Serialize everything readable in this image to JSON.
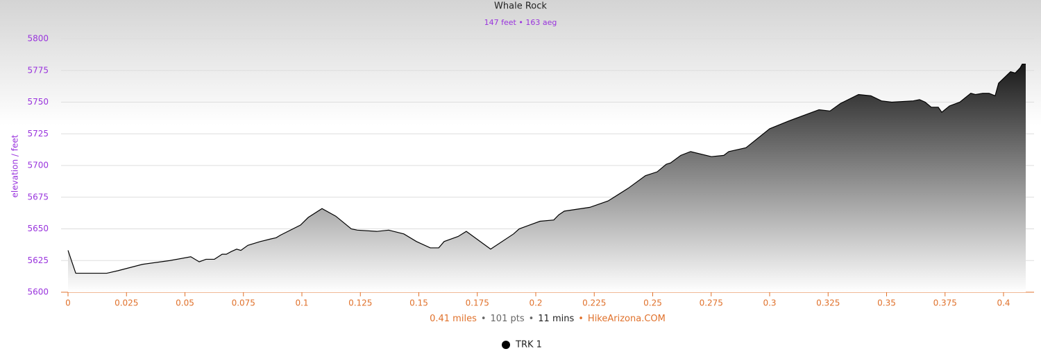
{
  "chart_data": {
    "type": "area",
    "title": "Whale Rock",
    "subtitle": "147 feet • 163 aeg",
    "y_label": "elevation / feet",
    "x": [
      0,
      0.0033,
      0.0166,
      0.0214,
      0.0318,
      0.0436,
      0.0525,
      0.0561,
      0.059,
      0.0626,
      0.0659,
      0.0677,
      0.0697,
      0.0721,
      0.0739,
      0.0769,
      0.0822,
      0.0866,
      0.089,
      0.0908,
      0.0994,
      0.1027,
      0.1086,
      0.1145,
      0.1211,
      0.1237,
      0.132,
      0.1371,
      0.1436,
      0.149,
      0.1549,
      0.1585,
      0.1608,
      0.1668,
      0.1703,
      0.1807,
      0.1905,
      0.1929,
      0.2018,
      0.2077,
      0.2098,
      0.2122,
      0.2231,
      0.2309,
      0.2395,
      0.2469,
      0.2519,
      0.2558,
      0.2576,
      0.262,
      0.2662,
      0.2751,
      0.2804,
      0.2825,
      0.2899,
      0.3,
      0.308,
      0.3211,
      0.3258,
      0.3303,
      0.338,
      0.3433,
      0.3478,
      0.3522,
      0.3614,
      0.3641,
      0.3665,
      0.3691,
      0.3721,
      0.3736,
      0.3769,
      0.3813,
      0.386,
      0.3881,
      0.3911,
      0.3938,
      0.3964,
      0.3979,
      0.403,
      0.405,
      0.4071,
      0.408,
      0.4095
    ],
    "series": [
      {
        "name": "TRK 1",
        "color": "#000000",
        "values": [
          5633,
          5615,
          5615,
          5617,
          5622,
          5625,
          5628,
          5624,
          5626,
          5626,
          5630,
          5630,
          5632,
          5634,
          5633,
          5637,
          5640,
          5642,
          5643,
          5645,
          5653,
          5659,
          5666,
          5660,
          5650,
          5649,
          5648,
          5649,
          5646,
          5640,
          5635,
          5635,
          5640,
          5644,
          5648,
          5634,
          5646,
          5650,
          5656,
          5657,
          5661,
          5664,
          5667,
          5672,
          5682,
          5692,
          5695,
          5701,
          5702,
          5708,
          5711,
          5707,
          5708,
          5711,
          5714,
          5729,
          5735,
          5744,
          5743,
          5749,
          5756,
          5755,
          5751,
          5750,
          5751,
          5752,
          5750,
          5746,
          5746,
          5742,
          5747,
          5750,
          5757,
          5756,
          5757,
          5757,
          5755,
          5765,
          5774,
          5773,
          5777,
          5780,
          5780
        ]
      }
    ],
    "xlim": [
      0,
      0.413
    ],
    "xticks": [
      0,
      0.025,
      0.05,
      0.075,
      0.1,
      0.125,
      0.15,
      0.175,
      0.2,
      0.225,
      0.25,
      0.275,
      0.3,
      0.325,
      0.35,
      0.375,
      0.4
    ],
    "ylim": [
      5600,
      5800
    ],
    "yticks": [
      5600,
      5625,
      5650,
      5675,
      5700,
      5725,
      5750,
      5775,
      5800
    ],
    "grid": true,
    "footer": {
      "separator": "•",
      "items": [
        {
          "text": "0.41 miles",
          "color": "#e0712b"
        },
        {
          "text": "101 pts",
          "color": "#666666"
        },
        {
          "text": "11 mins",
          "color": "#222222"
        },
        {
          "text": "HikeArizona.COM",
          "color": "#e0712b"
        }
      ]
    },
    "legend": "bottom"
  }
}
